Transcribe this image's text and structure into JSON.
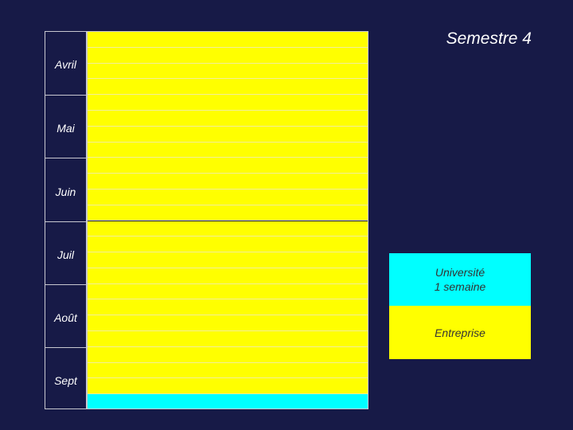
{
  "title": "Semestre 4",
  "months": [
    "Avril",
    "Mai",
    "Juin",
    "Juil",
    "Août",
    "Sept"
  ],
  "weeks": {
    "count": 24,
    "assignment": [
      "entreprise",
      "entreprise",
      "entreprise",
      "entreprise",
      "entreprise",
      "entreprise",
      "entreprise",
      "entreprise",
      "entreprise",
      "entreprise",
      "entreprise",
      "entreprise",
      "entreprise",
      "entreprise",
      "entreprise",
      "entreprise",
      "entreprise",
      "entreprise",
      "entreprise",
      "entreprise",
      "entreprise",
      "entreprise",
      "entreprise",
      "universite"
    ]
  },
  "legend": {
    "universite": {
      "line1": "Université",
      "line2": "1 semaine",
      "color": "#00FFFF"
    },
    "entreprise": {
      "label": "Entreprise",
      "color": "#FFFF00"
    }
  },
  "colors": {
    "background": "#171A47",
    "entreprise": "#FFFF00",
    "universite": "#00FFFF",
    "text": "#FFFFFF"
  }
}
